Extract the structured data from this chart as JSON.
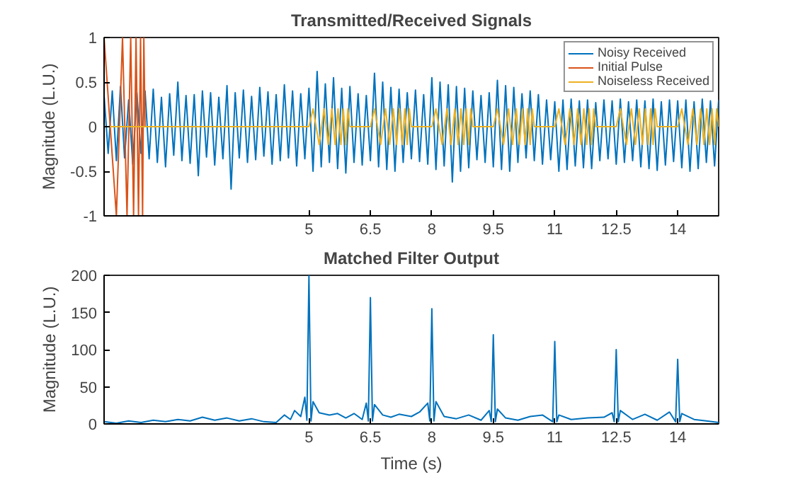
{
  "chart_data": [
    {
      "type": "line",
      "title": "Transmitted/Received Signals",
      "ylabel": "Magnitude (L.U.)",
      "xlim": [
        0,
        15
      ],
      "xticks": [
        5,
        6.5,
        8,
        9.5,
        11,
        12.5,
        14
      ],
      "ylim": [
        -1,
        1
      ],
      "yticks": [
        -1,
        -0.5,
        0,
        0.5,
        1
      ],
      "grid": false,
      "legend": "top right",
      "marker": "none",
      "line_style": "solid",
      "series": [
        {
          "name": "Noisy Received",
          "color": "#0072bd",
          "x": [
            0,
            0.1,
            0.2,
            0.3,
            0.4,
            0.5,
            0.6,
            0.7,
            0.8,
            0.9,
            1.0,
            1.1,
            1.2,
            1.3,
            1.4,
            1.5,
            1.6,
            1.7,
            1.8,
            1.9,
            2.0,
            2.1,
            2.2,
            2.3,
            2.4,
            2.5,
            2.6,
            2.7,
            2.8,
            2.9,
            3.0,
            3.1,
            3.2,
            3.3,
            3.4,
            3.5,
            3.6,
            3.7,
            3.8,
            3.9,
            4.0,
            4.1,
            4.2,
            4.3,
            4.4,
            4.5,
            4.6,
            4.7,
            4.8,
            4.9,
            5.0,
            5.1,
            5.2,
            5.3,
            5.4,
            5.5,
            5.6,
            5.7,
            5.8,
            5.9,
            6.0,
            6.1,
            6.2,
            6.3,
            6.4,
            6.5,
            6.6,
            6.7,
            6.8,
            6.9,
            7.0,
            7.1,
            7.2,
            7.3,
            7.4,
            7.5,
            7.6,
            7.7,
            7.8,
            7.9,
            8.0,
            8.1,
            8.2,
            8.3,
            8.4,
            8.5,
            8.6,
            8.7,
            8.8,
            8.9,
            9.0,
            9.1,
            9.2,
            9.3,
            9.4,
            9.5,
            9.6,
            9.7,
            9.8,
            9.9,
            10.0,
            10.1,
            10.2,
            10.3,
            10.4,
            10.5,
            10.6,
            10.7,
            10.8,
            10.9,
            11.0,
            11.1,
            11.2,
            11.3,
            11.4,
            11.5,
            11.6,
            11.7,
            11.8,
            11.9,
            12.0,
            12.1,
            12.2,
            12.3,
            12.4,
            12.5,
            12.6,
            12.7,
            12.8,
            12.9,
            13.0,
            13.1,
            13.2,
            13.3,
            13.4,
            13.5,
            13.6,
            13.7,
            13.8,
            13.9,
            14.0,
            14.1,
            14.2,
            14.3,
            14.4,
            14.5,
            14.6,
            14.7,
            14.8,
            14.9,
            15.0
          ],
          "values": [
            0.35,
            -0.3,
            0.4,
            -0.38,
            0.45,
            -0.35,
            0.3,
            -0.42,
            0.38,
            -0.3,
            0.4,
            -0.36,
            0.42,
            -0.4,
            0.33,
            -0.45,
            0.37,
            -0.32,
            0.5,
            -0.38,
            0.35,
            -0.41,
            0.36,
            -0.55,
            0.4,
            -0.34,
            0.38,
            -0.43,
            0.33,
            -0.36,
            0.46,
            -0.7,
            0.38,
            -0.35,
            0.41,
            -0.4,
            0.34,
            -0.37,
            0.44,
            -0.33,
            0.39,
            -0.42,
            0.36,
            -0.38,
            0.47,
            -0.35,
            0.4,
            -0.44,
            0.37,
            -0.36,
            0.43,
            -0.5,
            0.62,
            -0.45,
            0.48,
            -0.4,
            0.55,
            -0.47,
            0.43,
            -0.52,
            0.45,
            -0.4,
            0.37,
            -0.43,
            0.35,
            -0.38,
            0.6,
            -0.45,
            0.5,
            -0.48,
            0.44,
            -0.5,
            0.42,
            -0.4,
            0.38,
            -0.36,
            0.41,
            -0.39,
            0.36,
            -0.42,
            0.55,
            -0.48,
            0.5,
            -0.44,
            0.47,
            -0.62,
            0.45,
            -0.5,
            0.43,
            -0.46,
            0.4,
            -0.37,
            0.35,
            -0.4,
            0.38,
            -0.45,
            0.52,
            -0.48,
            0.46,
            -0.5,
            0.44,
            -0.4,
            0.37,
            -0.35,
            0.4,
            -0.38,
            0.36,
            -0.42,
            0.3,
            -0.37,
            0.28,
            -0.5,
            0.3,
            -0.48,
            0.31,
            -0.44,
            0.29,
            -0.46,
            0.3,
            -0.47,
            0.27,
            -0.38,
            0.3,
            -0.36,
            0.29,
            -0.42,
            0.31,
            -0.4,
            0.28,
            -0.38,
            0.3,
            -0.45,
            0.29,
            -0.47,
            0.31,
            -0.49,
            0.28,
            -0.43,
            0.3,
            -0.39,
            0.29,
            -0.46,
            0.3,
            -0.5,
            0.28,
            -0.47,
            0.31,
            -0.4,
            0.29,
            -0.44,
            0.3
          ]
        },
        {
          "name": "Initial Pulse",
          "color": "#d95319",
          "x": [
            0,
            0.3,
            0.45,
            0.56,
            0.65,
            0.72,
            0.78,
            0.84,
            0.89,
            0.94,
            0.97,
            1.0
          ],
          "values": [
            1,
            -1,
            1,
            -1,
            1,
            -1,
            1,
            -1,
            1,
            -1,
            1,
            0
          ]
        },
        {
          "name": "Noiseless Received",
          "color": "#edb120",
          "x": [
            0,
            5,
            5.1,
            5.25,
            5.37,
            5.47,
            5.56,
            5.64,
            5.71,
            5.78,
            5.84,
            5.9,
            5.95,
            6,
            6.5,
            6.6,
            6.75,
            6.87,
            6.97,
            7.06,
            7.14,
            7.21,
            7.28,
            7.34,
            7.4,
            7.45,
            7.5,
            8,
            8.1,
            8.25,
            8.37,
            8.47,
            8.56,
            8.64,
            8.71,
            8.78,
            8.84,
            8.9,
            8.95,
            9,
            9.5,
            9.6,
            9.75,
            9.87,
            9.97,
            10.06,
            10.14,
            10.21,
            10.28,
            10.34,
            10.4,
            10.45,
            10.5,
            11,
            11.1,
            11.25,
            11.37,
            11.47,
            11.56,
            11.64,
            11.71,
            11.78,
            11.84,
            11.9,
            11.95,
            12,
            12.5,
            12.6,
            12.75,
            12.87,
            12.97,
            13.06,
            13.14,
            13.21,
            13.28,
            13.34,
            13.4,
            13.45,
            13.5,
            14,
            14.1,
            14.25,
            14.37,
            14.47,
            14.56,
            14.64,
            14.71,
            14.78,
            14.84,
            14.9,
            14.95,
            15
          ],
          "values": [
            0,
            0,
            0.2,
            -0.2,
            0.2,
            -0.2,
            0.2,
            -0.2,
            0.2,
            -0.2,
            0.2,
            -0.2,
            0.2,
            0,
            0,
            0.2,
            -0.2,
            0.2,
            -0.2,
            0.2,
            -0.2,
            0.2,
            -0.2,
            0.2,
            -0.2,
            0.2,
            0,
            0,
            0.2,
            -0.2,
            0.2,
            -0.2,
            0.2,
            -0.2,
            0.2,
            -0.2,
            0.2,
            -0.2,
            0.2,
            0,
            0,
            0.2,
            -0.2,
            0.2,
            -0.2,
            0.2,
            -0.2,
            0.2,
            -0.2,
            0.2,
            -0.2,
            0.2,
            0,
            0,
            0.2,
            -0.2,
            0.2,
            -0.2,
            0.2,
            -0.2,
            0.2,
            -0.2,
            0.2,
            -0.2,
            0.2,
            0,
            0,
            0.2,
            -0.2,
            0.2,
            -0.2,
            0.2,
            -0.2,
            0.2,
            -0.2,
            0.2,
            -0.2,
            0.2,
            0,
            0,
            0.2,
            -0.2,
            0.2,
            -0.2,
            0.2,
            -0.2,
            0.2,
            -0.2,
            0.2,
            -0.2,
            0.2,
            0
          ]
        }
      ]
    },
    {
      "type": "line",
      "title": "Matched Filter Output",
      "xlabel": "Time (s)",
      "ylabel": "Magnitude (L.U.)",
      "xlim": [
        0,
        15
      ],
      "xticks": [
        5,
        6.5,
        8,
        9.5,
        11,
        12.5,
        14
      ],
      "ylim": [
        0,
        200
      ],
      "yticks": [
        0,
        50,
        100,
        150,
        200
      ],
      "grid": false,
      "legend": false,
      "marker": "none",
      "line_style": "solid",
      "series": [
        {
          "color": "#0072bd",
          "x": [
            0,
            0.3,
            0.6,
            0.9,
            1.2,
            1.5,
            1.8,
            2.1,
            2.4,
            2.7,
            3.0,
            3.3,
            3.6,
            3.9,
            4.2,
            4.4,
            4.55,
            4.65,
            4.8,
            4.9,
            4.95,
            5,
            5.05,
            5.1,
            5.25,
            5.5,
            5.7,
            5.9,
            6.1,
            6.3,
            6.4,
            6.45,
            6.5,
            6.55,
            6.6,
            6.8,
            7.0,
            7.2,
            7.5,
            7.7,
            7.9,
            7.95,
            8,
            8.05,
            8.1,
            8.3,
            8.6,
            8.9,
            9.2,
            9.4,
            9.45,
            9.5,
            9.55,
            9.6,
            9.8,
            10.1,
            10.4,
            10.7,
            10.95,
            11,
            11.05,
            11.1,
            11.4,
            11.8,
            12.2,
            12.4,
            12.45,
            12.5,
            12.55,
            12.6,
            12.9,
            13.2,
            13.5,
            13.8,
            13.95,
            14,
            14.05,
            14.1,
            14.4,
            14.7,
            15
          ],
          "values": [
            3,
            1,
            4,
            2,
            5,
            3,
            6,
            4,
            9,
            5,
            8,
            4,
            7,
            3,
            2,
            12,
            6,
            18,
            10,
            36,
            5,
            200,
            4,
            30,
            15,
            12,
            14,
            8,
            14,
            6,
            28,
            4,
            170,
            4,
            26,
            12,
            9,
            13,
            10,
            16,
            28,
            4,
            155,
            4,
            30,
            10,
            7,
            12,
            5,
            18,
            3,
            120,
            3,
            20,
            8,
            5,
            10,
            12,
            3,
            111,
            3,
            12,
            6,
            8,
            9,
            15,
            3,
            100,
            3,
            18,
            6,
            13,
            5,
            16,
            3,
            87,
            3,
            14,
            6,
            4,
            2
          ]
        }
      ]
    }
  ]
}
